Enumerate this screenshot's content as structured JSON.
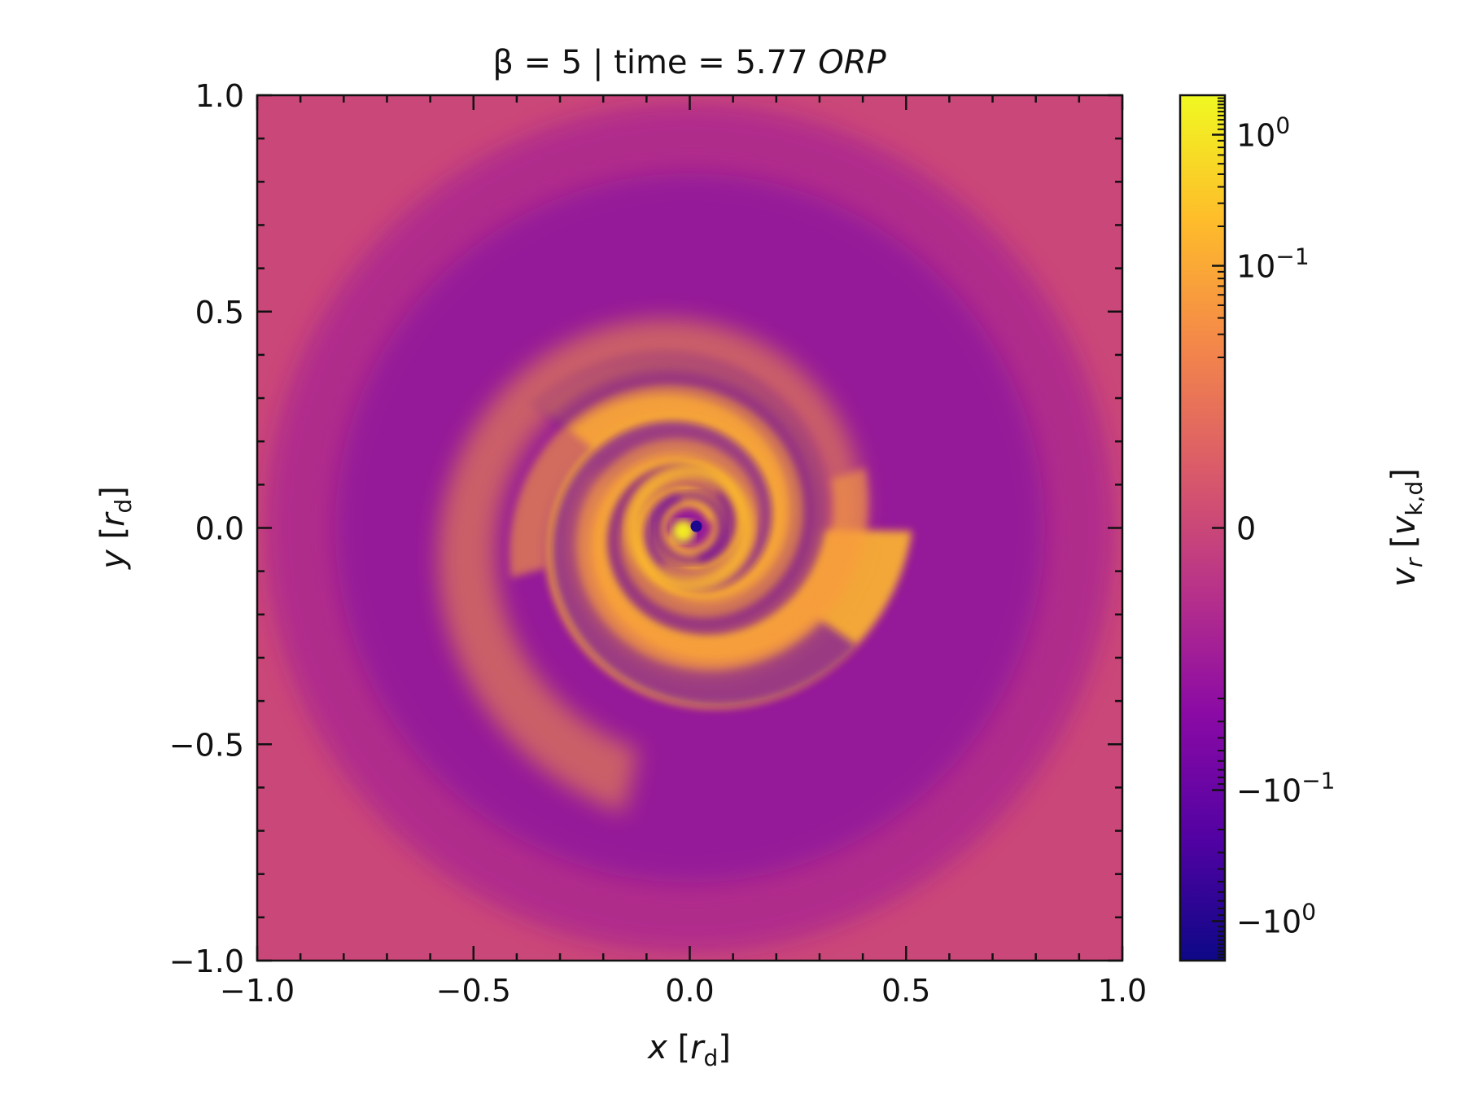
{
  "chart_data": {
    "type": "heatmap",
    "title": {
      "prefix": "β = 5 | time = 5.77 ",
      "italic_suffix": "ORP"
    },
    "xlabel": {
      "var": "x",
      "unit_open": " [",
      "unit_var": "r",
      "unit_sub": "d",
      "unit_close": "]"
    },
    "ylabel": {
      "var": "y",
      "unit_open": " [",
      "unit_var": "r",
      "unit_sub": "d",
      "unit_close": "]"
    },
    "xlim": [
      -1.0,
      1.0
    ],
    "ylim": [
      -1.0,
      1.0
    ],
    "x_ticks": [
      -1.0,
      -0.5,
      0.0,
      0.5,
      1.0
    ],
    "x_tick_labels": [
      "−1.0",
      "−0.5",
      "0.0",
      "0.5",
      "1.0"
    ],
    "y_ticks": [
      -1.0,
      -0.5,
      0.0,
      0.5,
      1.0
    ],
    "y_tick_labels": [
      "−1.0",
      "−0.5",
      "0.0",
      "0.5",
      "1.0"
    ],
    "minor_tick_step": 0.1,
    "colormap": "plasma",
    "colormap_stops": [
      "#0d0887",
      "#5302a3",
      "#8b0aa5",
      "#b83289",
      "#db5c68",
      "#f48849",
      "#febd2a",
      "#f0f921"
    ],
    "colorbar": {
      "scale": "symlog",
      "linthresh": 0.01,
      "range": [
        -2.0,
        2.0
      ],
      "label": {
        "var": "v",
        "sub_var": "r",
        "unit_open": " [",
        "unit_var": "v",
        "unit_sub": "k,d",
        "unit_close": "]"
      },
      "ticks": [
        {
          "value": 1.0,
          "base": "10",
          "exp": "0",
          "sign": ""
        },
        {
          "value": 0.1,
          "base": "10",
          "exp": "−1",
          "sign": ""
        },
        {
          "value": 0.0,
          "base": "0",
          "exp": "",
          "sign": ""
        },
        {
          "value": -0.1,
          "base": "10",
          "exp": "−1",
          "sign": "−"
        },
        {
          "value": -1.0,
          "base": "10",
          "exp": "0",
          "sign": "−"
        }
      ]
    },
    "grid": false,
    "field_description": "radial velocity v_r, spiral structure: positive (orange/yellow) inflowing spiral arms, negative (purple) interarm regions, near-zero background"
  }
}
